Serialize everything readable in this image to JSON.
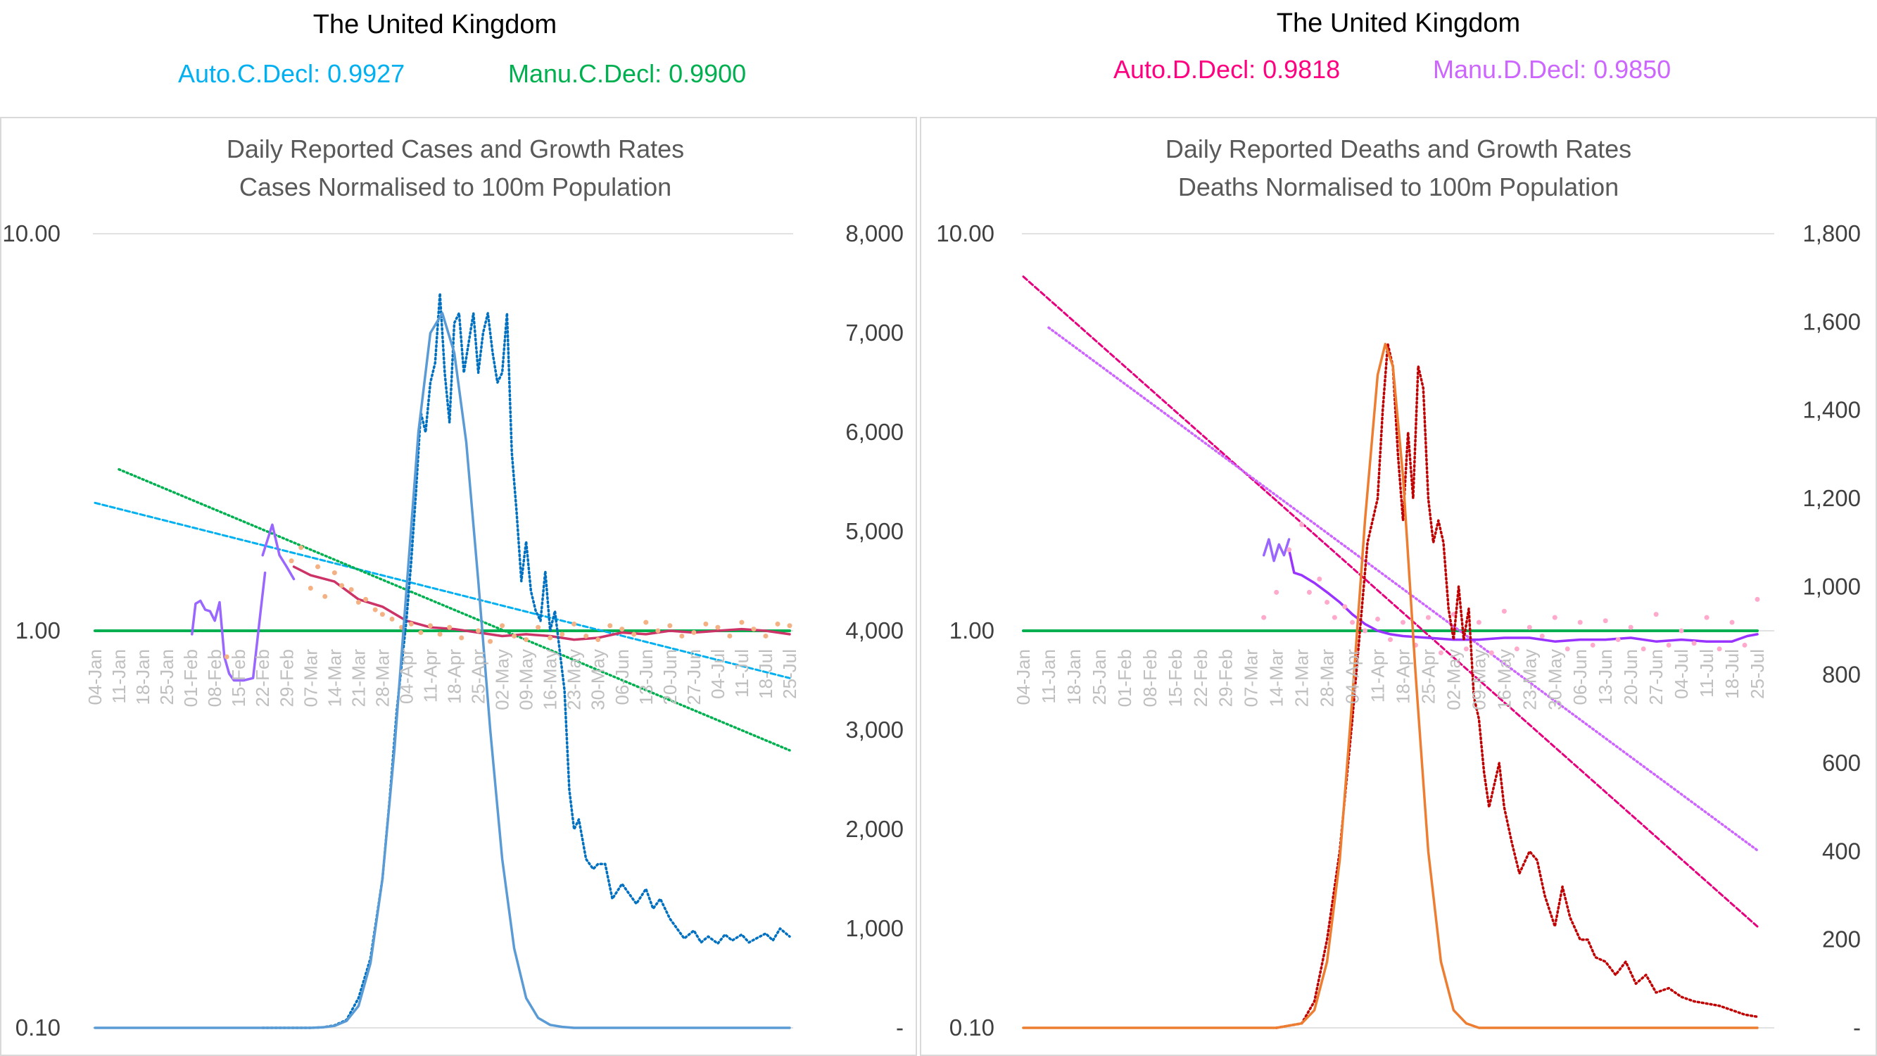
{
  "header": {
    "left": {
      "country": "The United Kingdom",
      "auto_label": "Auto.C.Decl: 0.9927",
      "manu_label": "Manu.C.Decl: 0.9900",
      "auto_color": "#00b0f0",
      "manu_color": "#00b050"
    },
    "right": {
      "country": "The United Kingdom",
      "auto_label": "Auto.D.Decl: 0.9818",
      "manu_label": "Manu.D.Decl: 0.9850",
      "auto_color": "#ff0080",
      "manu_color": "#cc66ff"
    }
  },
  "chart_data": [
    {
      "type": "line",
      "title": "Daily Reported Cases and Growth Rates",
      "subtitle": "Cases Normalised to 100m Population",
      "x_ticks": [
        "04-Jan",
        "11-Jan",
        "18-Jan",
        "25-Jan",
        "01-Feb",
        "08-Feb",
        "15-Feb",
        "22-Feb",
        "29-Feb",
        "07-Mar",
        "14-Mar",
        "21-Mar",
        "28-Mar",
        "04-Apr",
        "11-Apr",
        "18-Apr",
        "25-Apr",
        "02-May",
        "09-May",
        "16-May",
        "23-May",
        "30-May",
        "06-Jun",
        "13-Jun",
        "20-Jun",
        "27-Jun",
        "04-Jul",
        "11-Jul",
        "18-Jul",
        "25-Jul"
      ],
      "y_left": {
        "scale": "log",
        "range": [
          0.1,
          10
        ],
        "ticks": [
          "10.00",
          "1.00",
          "0.10"
        ],
        "tick_values": [
          10,
          1,
          0.1
        ]
      },
      "y_right": {
        "range": [
          0,
          8000
        ],
        "ticks": [
          "8,000",
          "7,000",
          "6,000",
          "5,000",
          "4,000",
          "3,000",
          "2,000",
          "1,000",
          "-"
        ],
        "tick_values": [
          8000,
          7000,
          6000,
          5000,
          4000,
          3000,
          2000,
          1000,
          0
        ]
      },
      "grid": "horizontal",
      "series": [
        {
          "key": "unity",
          "color": "#00b050",
          "style": "solid",
          "axis": "left",
          "x": [
            0,
            29
          ],
          "y": [
            1.0,
            1.0
          ]
        },
        {
          "key": "auto_trend",
          "color": "#00b0f0",
          "style": "dashed",
          "axis": "left",
          "x": [
            0,
            29
          ],
          "y": [
            2.1,
            0.76
          ]
        },
        {
          "key": "manu_trend",
          "color": "#00b050",
          "style": "dotted",
          "axis": "left",
          "x": [
            1,
            29
          ],
          "y": [
            2.55,
            0.5
          ]
        },
        {
          "key": "growth_early",
          "color": "#9966ff",
          "style": "solid",
          "axis": "left",
          "x": [
            4.05,
            4.2,
            4.4,
            4.6,
            4.8,
            5.0,
            5.2,
            5.4,
            5.6,
            5.8,
            6.0,
            6.2,
            6.6,
            6.9,
            7.1
          ],
          "y": [
            0.98,
            1.17,
            1.19,
            1.13,
            1.12,
            1.06,
            1.18,
            0.86,
            0.78,
            0.75,
            0.75,
            0.75,
            0.76,
            1.1,
            1.4
          ]
        },
        {
          "key": "growth_feb",
          "color": "#9966ff",
          "style": "solid",
          "axis": "left",
          "x": [
            7.0,
            7.4,
            7.7,
            8.0,
            8.3
          ],
          "y": [
            1.55,
            1.85,
            1.55,
            1.45,
            1.35
          ]
        },
        {
          "key": "growth_main",
          "color": "#cc3366",
          "style": "solid",
          "axis": "left",
          "x": [
            8.3,
            9,
            10,
            11,
            12,
            13,
            14,
            15,
            16,
            17,
            18,
            19,
            20,
            21,
            22,
            23,
            24,
            25,
            26,
            27,
            28,
            29
          ],
          "y": [
            1.45,
            1.38,
            1.33,
            1.2,
            1.15,
            1.06,
            1.02,
            1.01,
            0.99,
            0.97,
            0.98,
            0.97,
            0.95,
            0.96,
            0.99,
            0.98,
            1.0,
            0.99,
            1.0,
            1.01,
            1.0,
            0.98
          ]
        },
        {
          "key": "growth_scatter",
          "color": "#f4b183",
          "style": "points",
          "axis": "left",
          "x": [
            5.5,
            8.2,
            8.6,
            9.0,
            9.3,
            9.6,
            10.0,
            10.3,
            10.7,
            11.0,
            11.3,
            11.7,
            12.0,
            12.4,
            12.8,
            13.2,
            13.6,
            14.0,
            14.4,
            14.8,
            15.3,
            16.0,
            16.5,
            17.0,
            17.5,
            18.0,
            18.5,
            19.0,
            19.5,
            20.0,
            20.5,
            21.0,
            21.5,
            22.0,
            22.5,
            23.0,
            23.5,
            24.0,
            24.5,
            25.0,
            25.5,
            26.0,
            26.5,
            27.0,
            27.5,
            28.0,
            28.5,
            29.0
          ],
          "y": [
            0.86,
            1.5,
            1.62,
            1.28,
            1.45,
            1.22,
            1.4,
            1.3,
            1.27,
            1.18,
            1.2,
            1.13,
            1.1,
            1.07,
            1.02,
            1.04,
            0.99,
            1.03,
            0.98,
            1.02,
            0.96,
            1.0,
            0.94,
            1.03,
            0.97,
            0.95,
            1.02,
            0.96,
            0.98,
            1.04,
            0.97,
            0.95,
            1.03,
            1.01,
            0.98,
            1.05,
            1.0,
            1.03,
            0.97,
            0.99,
            1.04,
            1.02,
            0.97,
            1.05,
            1.01,
            0.97,
            1.04,
            1.03
          ]
        },
        {
          "key": "daily_cases_dotted",
          "color": "#0070c0",
          "style": "dotted",
          "axis": "right",
          "x": [
            7,
            8,
            9,
            9.5,
            10,
            10.5,
            11,
            11.5,
            12,
            12.3,
            12.6,
            13.0,
            13.2,
            13.4,
            13.6,
            13.8,
            14.0,
            14.2,
            14.4,
            14.6,
            14.8,
            15.0,
            15.2,
            15.4,
            15.6,
            15.8,
            16.0,
            16.2,
            16.4,
            16.6,
            16.8,
            17.0,
            17.2,
            17.4,
            17.6,
            17.8,
            18.0,
            18.2,
            18.4,
            18.6,
            18.8,
            19.0,
            19.2,
            19.4,
            19.6,
            19.8,
            20.0,
            20.2,
            20.5,
            20.8,
            21.0,
            21.3,
            21.6,
            22.0,
            22.3,
            22.6,
            23.0,
            23.3,
            23.6,
            24.0,
            24.3,
            24.6,
            25.0,
            25.3,
            25.6,
            26.0,
            26.3,
            26.6,
            27.0,
            27.3,
            27.6,
            28.0,
            28.3,
            28.6,
            29.0
          ],
          "y": [
            0,
            0,
            0,
            5,
            25,
            80,
            300,
            700,
            1500,
            2300,
            3200,
            4100,
            4700,
            5400,
            6200,
            6000,
            6500,
            6700,
            7400,
            6600,
            6100,
            7100,
            7200,
            6600,
            6900,
            7200,
            6600,
            7000,
            7200,
            6800,
            6500,
            6600,
            7200,
            5800,
            5200,
            4500,
            4900,
            4400,
            4200,
            4100,
            4600,
            4000,
            4200,
            3800,
            3400,
            2400,
            2000,
            2100,
            1700,
            1600,
            1650,
            1650,
            1300,
            1450,
            1350,
            1250,
            1400,
            1200,
            1300,
            1100,
            1000,
            900,
            980,
            860,
            920,
            850,
            940,
            880,
            940,
            860,
            900,
            950,
            880,
            1000,
            920
          ]
        },
        {
          "key": "daily_cases_curve",
          "color": "#5b9bd5",
          "style": "solid",
          "axis": "right",
          "x": [
            0,
            6,
            7,
            8,
            9,
            9.5,
            10,
            10.5,
            11,
            11.5,
            12,
            12.5,
            13,
            13.5,
            14,
            14.5,
            15,
            15.5,
            16,
            16.5,
            17,
            17.5,
            18,
            18.5,
            19,
            19.5,
            20,
            21,
            25,
            29
          ],
          "y": [
            0,
            0,
            0,
            0,
            0,
            5,
            20,
            70,
            220,
            650,
            1500,
            2800,
            4400,
            6000,
            7000,
            7200,
            6800,
            5900,
            4500,
            3000,
            1700,
            800,
            300,
            100,
            30,
            10,
            0,
            0,
            0,
            0
          ]
        }
      ]
    },
    {
      "type": "line",
      "title": "Daily Reported Deaths and Growth Rates",
      "subtitle": "Deaths Normalised to 100m Population",
      "x_ticks": [
        "04-Jan",
        "11-Jan",
        "18-Jan",
        "25-Jan",
        "01-Feb",
        "08-Feb",
        "15-Feb",
        "22-Feb",
        "29-Feb",
        "07-Mar",
        "14-Mar",
        "21-Mar",
        "28-Mar",
        "04-Apr",
        "11-Apr",
        "18-Apr",
        "25-Apr",
        "02-May",
        "09-May",
        "16-May",
        "23-May",
        "30-May",
        "06-Jun",
        "13-Jun",
        "20-Jun",
        "27-Jun",
        "04-Jul",
        "11-Jul",
        "18-Jul",
        "25-Jul"
      ],
      "y_left": {
        "scale": "log",
        "range": [
          0.1,
          10
        ],
        "ticks": [
          "10.00",
          "1.00",
          "0.10"
        ],
        "tick_values": [
          10,
          1,
          0.1
        ]
      },
      "y_right": {
        "range": [
          0,
          1800
        ],
        "ticks": [
          "1,800",
          "1,600",
          "1,400",
          "1,200",
          "1,000",
          "800",
          "600",
          "400",
          "200",
          "-"
        ],
        "tick_values": [
          1800,
          1600,
          1400,
          1200,
          1000,
          800,
          600,
          400,
          200,
          0
        ]
      },
      "grid": "horizontal",
      "series": [
        {
          "key": "unity",
          "color": "#00b050",
          "style": "solid",
          "axis": "left",
          "x": [
            0,
            29
          ],
          "y": [
            1.0,
            1.0
          ]
        },
        {
          "key": "auto_trend",
          "color": "#e6007e",
          "style": "dashed",
          "axis": "left",
          "x": [
            0,
            29
          ],
          "y": [
            7.8,
            0.18
          ]
        },
        {
          "key": "manu_trend",
          "color": "#cc66ff",
          "style": "dotted",
          "axis": "left",
          "x": [
            1,
            29
          ],
          "y": [
            5.8,
            0.28
          ]
        },
        {
          "key": "growth_early",
          "color": "#9966ff",
          "style": "solid",
          "axis": "left",
          "x": [
            9.5,
            9.7,
            9.9,
            10.1,
            10.3,
            10.5
          ],
          "y": [
            1.55,
            1.7,
            1.5,
            1.65,
            1.55,
            1.7
          ]
        },
        {
          "key": "growth_main",
          "color": "#9933ff",
          "style": "solid",
          "axis": "left",
          "x": [
            10.5,
            10.7,
            11,
            11.5,
            12,
            12.5,
            13,
            13.5,
            14,
            14.5,
            15,
            16,
            17,
            18,
            19,
            20,
            21,
            22,
            23,
            24,
            25,
            26,
            27,
            28,
            28.6,
            29
          ],
          "y": [
            1.6,
            1.4,
            1.38,
            1.32,
            1.25,
            1.18,
            1.1,
            1.04,
            1.0,
            0.98,
            0.97,
            0.96,
            0.95,
            0.95,
            0.96,
            0.96,
            0.94,
            0.95,
            0.95,
            0.96,
            0.94,
            0.95,
            0.94,
            0.94,
            0.97,
            0.98
          ]
        },
        {
          "key": "growth_scatter",
          "color": "#ffaacc",
          "style": "points",
          "axis": "left",
          "x": [
            9.5,
            10.0,
            10.5,
            11.0,
            11.3,
            11.7,
            12.0,
            12.3,
            12.7,
            13.0,
            13.5,
            14.0,
            14.5,
            15.0,
            15.5,
            16.0,
            16.5,
            17.0,
            17.5,
            18.0,
            18.5,
            19.0,
            19.5,
            20.0,
            20.5,
            21.0,
            21.5,
            22.0,
            22.5,
            23.0,
            23.5,
            24.0,
            24.5,
            25.0,
            25.5,
            26.0,
            26.5,
            27.0,
            27.5,
            28.0,
            28.5,
            29.0
          ],
          "y": [
            1.08,
            1.25,
            1.6,
            1.85,
            1.25,
            1.35,
            1.18,
            1.08,
            1.15,
            1.05,
            1.0,
            1.07,
            0.95,
            1.05,
            0.92,
            1.08,
            0.88,
            1.1,
            0.9,
            1.05,
            0.88,
            1.12,
            0.9,
            1.02,
            0.97,
            1.08,
            0.9,
            1.05,
            0.92,
            1.06,
            0.95,
            1.02,
            0.9,
            1.1,
            0.92,
            1.0,
            0.93,
            1.08,
            0.9,
            1.05,
            0.92,
            1.2
          ]
        },
        {
          "key": "daily_deaths_dotted",
          "color": "#c00000",
          "style": "dotted",
          "axis": "right",
          "x": [
            10,
            11,
            11.5,
            12,
            12.5,
            13,
            13.3,
            13.6,
            14.0,
            14.2,
            14.4,
            14.6,
            14.8,
            15.0,
            15.2,
            15.4,
            15.6,
            15.8,
            16.0,
            16.2,
            16.4,
            16.6,
            16.8,
            17.0,
            17.2,
            17.4,
            17.6,
            17.8,
            18.0,
            18.2,
            18.4,
            18.6,
            18.8,
            19.0,
            19.3,
            19.6,
            20.0,
            20.3,
            20.6,
            21.0,
            21.3,
            21.6,
            22.0,
            22.3,
            22.6,
            23.0,
            23.4,
            23.8,
            24.2,
            24.6,
            25.0,
            25.5,
            26.0,
            26.5,
            27.0,
            27.5,
            28.0,
            28.5,
            29.0
          ],
          "y": [
            0,
            10,
            60,
            200,
            400,
            700,
            900,
            1100,
            1200,
            1400,
            1550,
            1500,
            1300,
            1150,
            1350,
            1200,
            1500,
            1450,
            1200,
            1100,
            1150,
            1100,
            950,
            880,
            1000,
            880,
            950,
            750,
            700,
            580,
            500,
            550,
            600,
            500,
            420,
            350,
            400,
            380,
            300,
            230,
            320,
            250,
            200,
            200,
            160,
            150,
            120,
            150,
            100,
            120,
            80,
            90,
            70,
            60,
            55,
            50,
            40,
            30,
            25
          ]
        },
        {
          "key": "daily_deaths_curve",
          "color": "#ed7d31",
          "style": "solid",
          "axis": "right",
          "x": [
            0,
            10,
            11,
            11.5,
            12,
            12.5,
            13,
            13.5,
            14,
            14.3,
            14.6,
            15.0,
            15.5,
            16,
            16.5,
            17,
            17.5,
            18,
            29
          ],
          "y": [
            0,
            0,
            10,
            40,
            150,
            380,
            750,
            1150,
            1480,
            1550,
            1500,
            1250,
            800,
            400,
            150,
            40,
            10,
            0,
            0
          ]
        }
      ]
    }
  ]
}
